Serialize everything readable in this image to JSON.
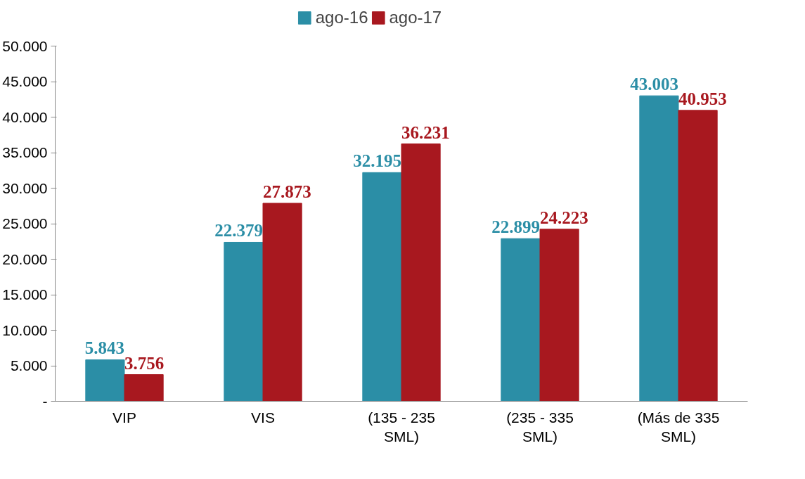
{
  "chart_data": {
    "type": "bar",
    "categories": [
      "VIP",
      "VIS",
      "(135 - 235\nSML)",
      "(235 - 335\nSML)",
      "(Más de 335\nSML)"
    ],
    "series": [
      {
        "name": "ago-16",
        "color": "#2b8ea6",
        "values": [
          5843,
          22379,
          32195,
          22899,
          43003
        ],
        "value_labels": [
          "5.843",
          "22.379",
          "32.195",
          "22.899",
          "43.003"
        ]
      },
      {
        "name": "ago-17",
        "color": "#a8181f",
        "values": [
          3756,
          27873,
          36231,
          24223,
          40953
        ],
        "value_labels": [
          "3.756",
          "27.873",
          "36.231",
          "24.223",
          "40.953"
        ]
      }
    ],
    "ylim": [
      0,
      50000
    ],
    "yticks": [
      {
        "value": 0,
        "label": "-"
      },
      {
        "value": 5000,
        "label": "5.000"
      },
      {
        "value": 10000,
        "label": "10.000"
      },
      {
        "value": 15000,
        "label": "15.000"
      },
      {
        "value": 20000,
        "label": "20.000"
      },
      {
        "value": 25000,
        "label": "25.000"
      },
      {
        "value": 30000,
        "label": "30.000"
      },
      {
        "value": 35000,
        "label": "35.000"
      },
      {
        "value": 40000,
        "label": "40.000"
      },
      {
        "value": 45000,
        "label": "45.000"
      },
      {
        "value": 50000,
        "label": "50.000"
      }
    ],
    "grid": false,
    "legend": "top"
  }
}
